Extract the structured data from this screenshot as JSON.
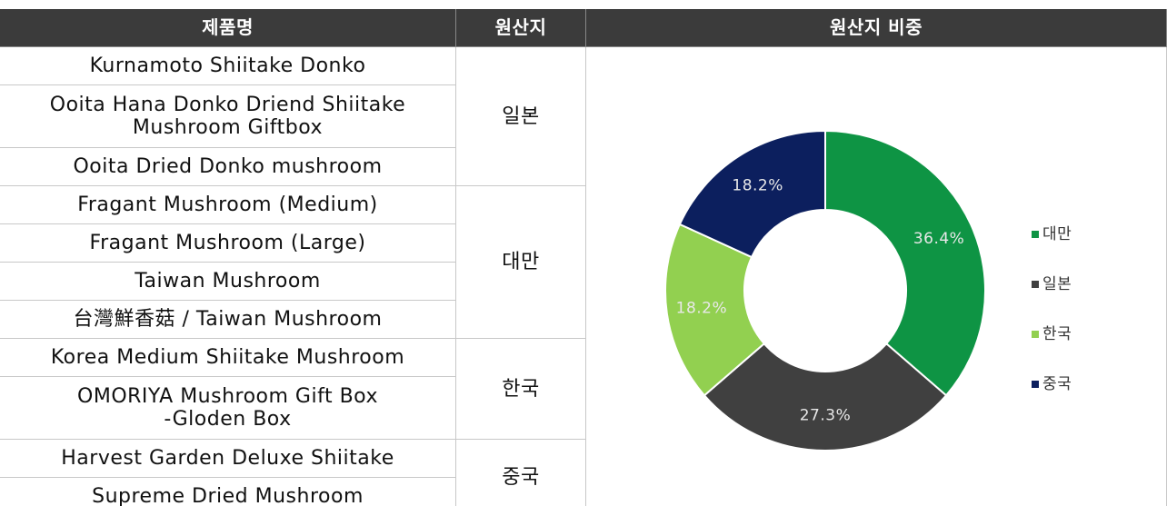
{
  "table": {
    "header": [
      "제품명",
      "원산지",
      "원산지 비중"
    ],
    "groups": [
      {
        "origin": "일본",
        "products": [
          "Kurnamoto Shiitake Donko",
          "Ooita Hana Donko Driend Shiitake\nMushroom Giftbox",
          "Ooita Dried Donko mushroom"
        ]
      },
      {
        "origin": "대만",
        "products": [
          "Fragant Mushroom (Medium)",
          "Fragant Mushroom (Large)",
          "Taiwan Mushroom",
          "台灣鮮香菇 / Taiwan Mushroom"
        ]
      },
      {
        "origin": "한국",
        "products": [
          "Korea Medium Shiitake Mushroom",
          "OMORIYA Mushroom Gift Box\n-Gloden Box"
        ]
      },
      {
        "origin": "중국",
        "products": [
          "Harvest Garden Deluxe Shiitake",
          "Supreme Dried Mushroom"
        ]
      }
    ]
  },
  "chart_data": {
    "type": "pie",
    "donut": true,
    "categories": [
      "대만",
      "일본",
      "한국",
      "중국"
    ],
    "values": [
      36.4,
      27.3,
      18.2,
      18.2
    ],
    "colors": [
      "#0e9444",
      "#404040",
      "#92d050",
      "#0c1f5e"
    ]
  }
}
